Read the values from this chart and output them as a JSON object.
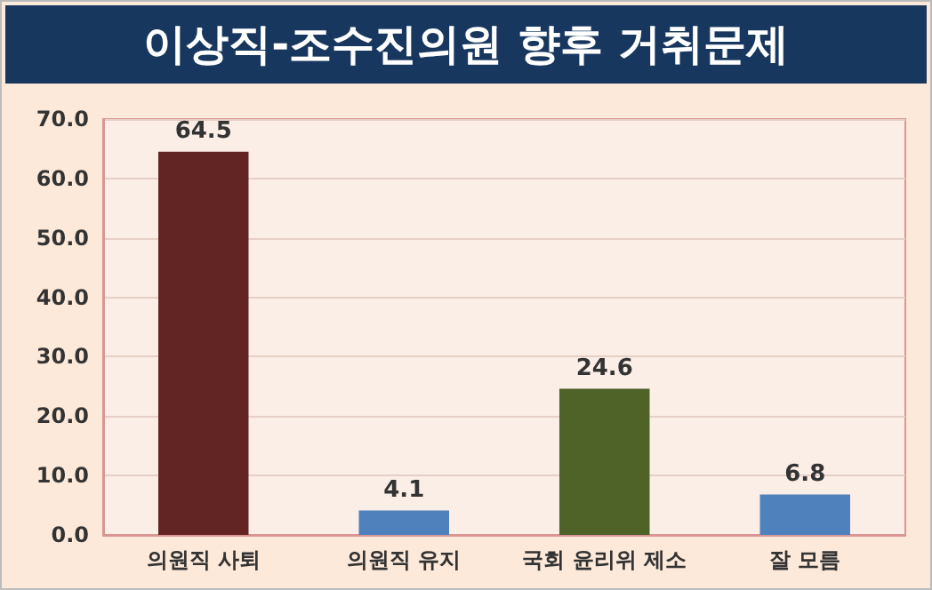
{
  "chart_data": {
    "type": "bar",
    "title": "이상직-조수진의원 향후 거취문제",
    "categories": [
      "의원직 사퇴",
      "의원직 유지",
      "국회 윤리위 제소",
      "잘 모름"
    ],
    "values": [
      64.5,
      4.1,
      24.6,
      6.8
    ],
    "colors": [
      "#632523",
      "#4f81bd",
      "#4f6228",
      "#4f81bd"
    ],
    "ylim": [
      0,
      70
    ],
    "yticks": [
      {
        "value": 0,
        "label": "0.0"
      },
      {
        "value": 10,
        "label": "10.0"
      },
      {
        "value": 20,
        "label": "20.0"
      },
      {
        "value": 30,
        "label": "30.0"
      },
      {
        "value": 40,
        "label": "40.0"
      },
      {
        "value": 50,
        "label": "50.0"
      },
      {
        "value": 60,
        "label": "60.0"
      },
      {
        "value": 70,
        "label": "70.0"
      }
    ],
    "grid": "y",
    "data_labels": true
  }
}
